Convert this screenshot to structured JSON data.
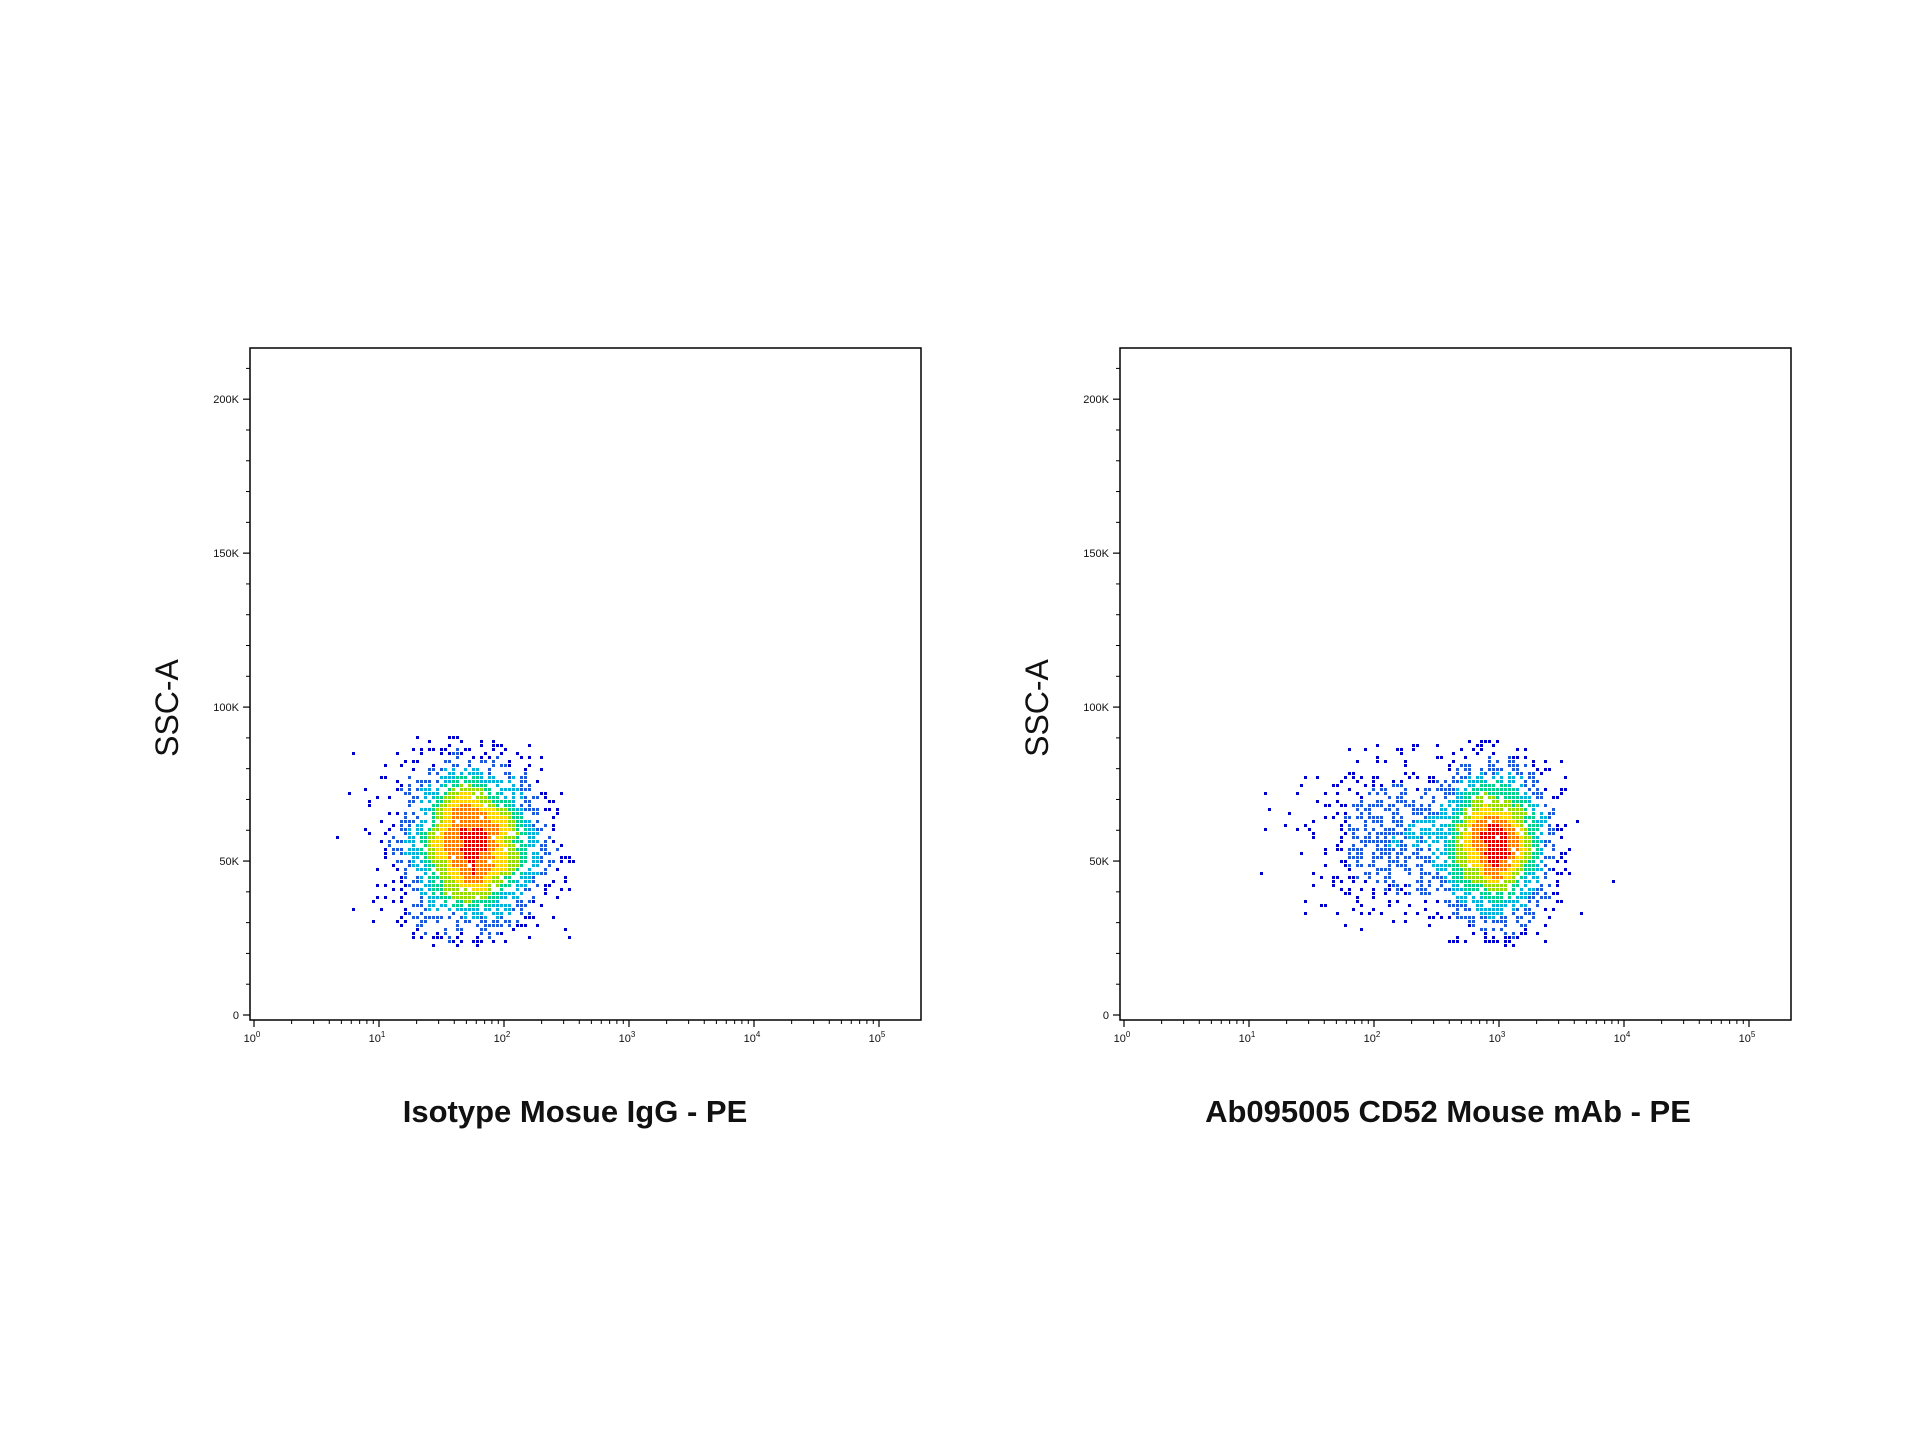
{
  "chart_data": [
    {
      "type": "scatter",
      "title": "",
      "xlabel": "Isotype Mosue IgG - PE",
      "ylabel": "SSC-A",
      "x_scale": "log",
      "xlim": [
        1,
        100000
      ],
      "ylim": [
        0,
        215000
      ],
      "x_ticks": [
        {
          "value": 1,
          "base": "10",
          "exp": "0"
        },
        {
          "value": 10,
          "base": "10",
          "exp": "1"
        },
        {
          "value": 100,
          "base": "10",
          "exp": "2"
        },
        {
          "value": 1000,
          "base": "10",
          "exp": "3"
        },
        {
          "value": 10000,
          "base": "10",
          "exp": "4"
        },
        {
          "value": 100000,
          "base": "10",
          "exp": "5"
        }
      ],
      "y_ticks": [
        {
          "value": 0,
          "label": "0"
        },
        {
          "value": 50000,
          "label": "50K"
        },
        {
          "value": 100000,
          "label": "100K"
        },
        {
          "value": 150000,
          "label": "150K"
        },
        {
          "value": 200000,
          "label": "200K"
        }
      ],
      "grid": false,
      "legend": "none",
      "color_scale": [
        "#0000cc",
        "#1e5adc",
        "#00b4dc",
        "#00d28c",
        "#96dc00",
        "#ffd200",
        "#ff7800",
        "#e60000"
      ],
      "populations": [
        {
          "x_center": 55,
          "y_center": 55000,
          "x_spread_decades": 0.28,
          "y_spread": 14000,
          "count": 2600,
          "x_min": 4,
          "x_max": 400,
          "y_min": 22000,
          "y_max": 90000
        }
      ]
    },
    {
      "type": "scatter",
      "title": "",
      "xlabel": "Ab095005 CD52 Mouse mAb - PE",
      "ylabel": "SSC-A",
      "x_scale": "log",
      "xlim": [
        1,
        100000
      ],
      "ylim": [
        0,
        215000
      ],
      "x_ticks": [
        {
          "value": 1,
          "base": "10",
          "exp": "0"
        },
        {
          "value": 10,
          "base": "10",
          "exp": "1"
        },
        {
          "value": 100,
          "base": "10",
          "exp": "2"
        },
        {
          "value": 1000,
          "base": "10",
          "exp": "3"
        },
        {
          "value": 10000,
          "base": "10",
          "exp": "4"
        },
        {
          "value": 100000,
          "base": "10",
          "exp": "5"
        }
      ],
      "y_ticks": [
        {
          "value": 0,
          "label": "0"
        },
        {
          "value": 50000,
          "label": "50K"
        },
        {
          "value": 100000,
          "label": "100K"
        },
        {
          "value": 150000,
          "label": "150K"
        },
        {
          "value": 200000,
          "label": "200K"
        }
      ],
      "grid": false,
      "legend": "none",
      "color_scale": [
        "#0000cc",
        "#1e5adc",
        "#00b4dc",
        "#00d28c",
        "#96dc00",
        "#ffd200",
        "#ff7800",
        "#e60000"
      ],
      "populations": [
        {
          "x_center": 950,
          "y_center": 55000,
          "x_spread_decades": 0.22,
          "y_spread": 13000,
          "count": 2100,
          "x_min": 200,
          "x_max": 15000,
          "y_min": 22000,
          "y_max": 90000
        },
        {
          "x_center": 160,
          "y_center": 57000,
          "x_spread_decades": 0.35,
          "y_spread": 12000,
          "count": 650,
          "x_min": 8,
          "x_max": 2000,
          "y_min": 24000,
          "y_max": 88000
        }
      ]
    }
  ]
}
